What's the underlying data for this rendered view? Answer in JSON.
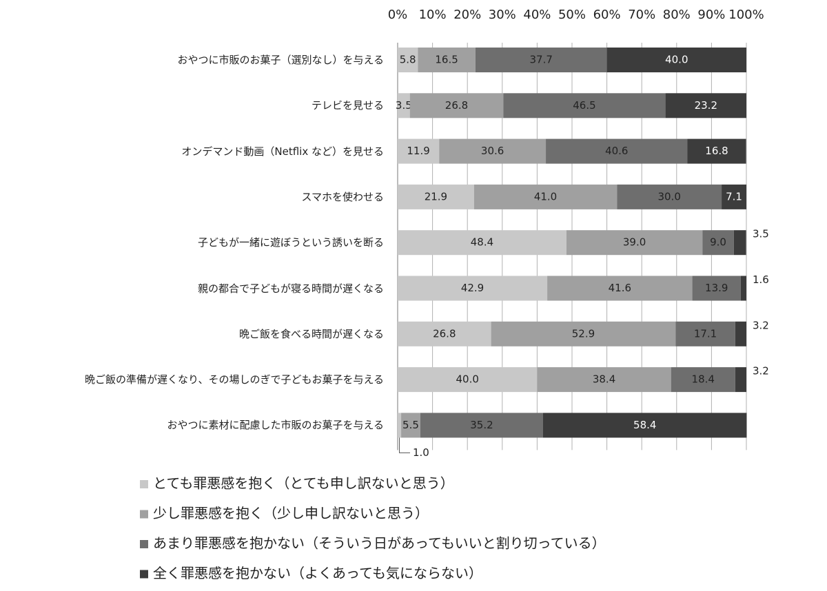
{
  "chart_data": {
    "type": "stacked-bar-horizontal",
    "categories": [
      "おやつに市販のお菓子（選別なし）を与える",
      "テレビを見せる",
      "オンデマンド動画（Netflix など）を見せる",
      "スマホを使わせる",
      "子どもが一緒に遊ぼうという誘いを断る",
      "親の都合で子どもが寝る時間が遅くなる",
      "晩ご飯を食べる時間が遅くなる",
      "晩ご飯の準備が遅くなり、その場しのぎで子どもお菓子を与える",
      "おやつに素材に配慮した市販のお菓子を与える"
    ],
    "series": [
      {
        "name": "とても罪悪感を抱く（とても申し訳ないと思う）",
        "color": "#c8c8c8",
        "values": [
          5.8,
          3.5,
          11.9,
          21.9,
          48.4,
          42.9,
          26.8,
          40.0,
          1.0
        ],
        "value_labels": [
          "5.8",
          "3.5",
          "11.9",
          "21.9",
          "48.4",
          "42.9",
          "26.8",
          "40.0",
          "1.0"
        ]
      },
      {
        "name": "少し罪悪感を抱く（少し申し訳ないと思う）",
        "color": "#a0a0a0",
        "values": [
          16.5,
          26.8,
          30.6,
          41.0,
          39.0,
          41.6,
          52.9,
          38.4,
          5.5
        ],
        "value_labels": [
          "16.5",
          "26.8",
          "30.6",
          "41.0",
          "39.0",
          "41.6",
          "52.9",
          "38.4",
          "5.5"
        ]
      },
      {
        "name": "あまり罪悪感を抱かない（そういう日があってもいいと割り切っている）",
        "color": "#6e6e6e",
        "values": [
          37.7,
          46.5,
          40.6,
          30.0,
          9.0,
          13.9,
          17.1,
          18.4,
          35.2
        ],
        "value_labels": [
          "37.7",
          "46.5",
          "40.6",
          "30.0",
          "9.0",
          "13.9",
          "17.1",
          "18.4",
          "35.2"
        ]
      },
      {
        "name": "全く罪悪感を抱かない（よくあっても気にならない）",
        "color": "#3c3c3c",
        "values": [
          40.0,
          23.2,
          16.8,
          7.1,
          3.5,
          1.6,
          3.2,
          3.2,
          58.4
        ],
        "value_labels": [
          "40.0",
          "23.2",
          "16.8",
          "7.1",
          "3.5",
          "1.6",
          "3.2",
          "3.2",
          "58.4"
        ]
      }
    ],
    "xlim": [
      0,
      100
    ],
    "xticks": [
      {
        "value": 0,
        "label": "0%"
      },
      {
        "value": 10,
        "label": "10%"
      },
      {
        "value": 20,
        "label": "20%"
      },
      {
        "value": 30,
        "label": "30%"
      },
      {
        "value": 40,
        "label": "40%"
      },
      {
        "value": 50,
        "label": "50%"
      },
      {
        "value": 60,
        "label": "60%"
      },
      {
        "value": 70,
        "label": "70%"
      },
      {
        "value": 80,
        "label": "80%"
      },
      {
        "value": 90,
        "label": "90%"
      },
      {
        "value": 100,
        "label": "100%"
      }
    ],
    "grid": true
  }
}
